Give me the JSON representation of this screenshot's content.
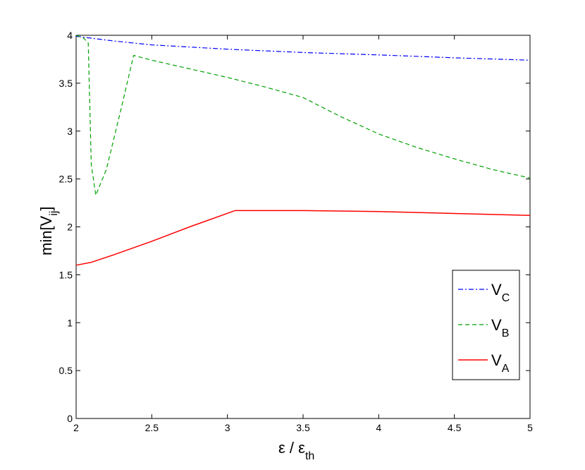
{
  "chart_data": {
    "type": "line",
    "xlabel": {
      "main": "ε / ε",
      "sub": "th"
    },
    "ylabel": {
      "main": "min[V",
      "sub": "ij",
      "close": "]"
    },
    "xlim": [
      2,
      5
    ],
    "ylim": [
      0,
      4
    ],
    "xticks": [
      2,
      2.5,
      3,
      3.5,
      4,
      4.5,
      5
    ],
    "xtick_labels": [
      "2",
      "2.5",
      "3",
      "3.5",
      "4",
      "4.5",
      "5"
    ],
    "yticks": [
      0,
      0.5,
      1,
      1.5,
      2,
      2.5,
      3,
      3.5,
      4
    ],
    "ytick_labels": [
      "0",
      "0.5",
      "1",
      "1.5",
      "2",
      "2.5",
      "3",
      "3.5",
      "4"
    ],
    "grid": false,
    "legend_position": "lower-right",
    "series": [
      {
        "name": "V_C",
        "label_main": "V",
        "label_sub": "C",
        "color": "#0000ff",
        "dash": "dashdot",
        "x": [
          2.0,
          2.25,
          2.5,
          3.0,
          3.5,
          4.0,
          4.5,
          5.0
        ],
        "y": [
          3.99,
          3.94,
          3.9,
          3.855,
          3.82,
          3.795,
          3.765,
          3.74
        ]
      },
      {
        "name": "V_B",
        "label_main": "V",
        "label_sub": "B",
        "color": "#00a000",
        "dash": "dashed",
        "x": [
          2.0,
          2.05,
          2.08,
          2.1,
          2.13,
          2.2,
          2.3,
          2.38,
          2.5,
          2.75,
          3.0,
          3.25,
          3.5,
          3.75,
          4.0,
          4.25,
          4.5,
          4.75,
          5.0
        ],
        "y": [
          4.0,
          3.97,
          3.92,
          2.65,
          2.33,
          2.6,
          3.25,
          3.79,
          3.74,
          3.65,
          3.56,
          3.46,
          3.35,
          3.15,
          2.97,
          2.83,
          2.71,
          2.6,
          2.51
        ]
      },
      {
        "name": "V_A",
        "label_main": "V",
        "label_sub": "A",
        "color": "#ff0000",
        "dash": "solid",
        "x": [
          2.0,
          2.1,
          2.25,
          2.5,
          2.75,
          3.05,
          3.5,
          4.0,
          4.5,
          5.0
        ],
        "y": [
          1.6,
          1.63,
          1.71,
          1.85,
          2.0,
          2.17,
          2.17,
          2.16,
          2.14,
          2.12
        ]
      }
    ]
  }
}
